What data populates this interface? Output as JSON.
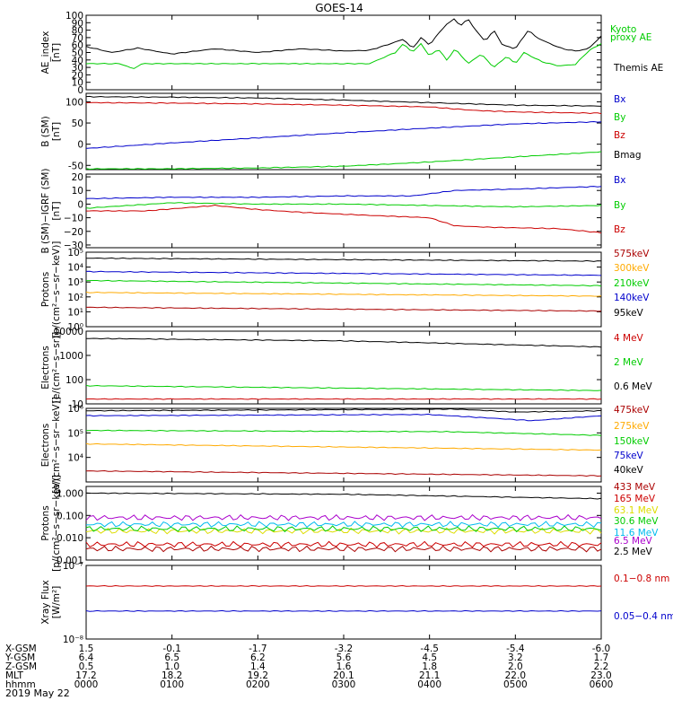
{
  "title": "GOES-14",
  "time_ticks": [
    "0000",
    "0100",
    "0200",
    "0300",
    "0400",
    "0500",
    "0600"
  ],
  "date_label": "2019 May 22",
  "orbit_rows": [
    {
      "label": "X-GSM",
      "values": [
        "1.5",
        "-0.1",
        "-1.7",
        "-3.2",
        "-4.5",
        "-5.4",
        "-6.0"
      ]
    },
    {
      "label": "Y-GSM",
      "values": [
        "6.4",
        "6.5",
        "6.2",
        "5.6",
        "4.5",
        "3.2",
        "1.7"
      ]
    },
    {
      "label": "Z-GSM",
      "values": [
        "0.5",
        "1.0",
        "1.4",
        "1.6",
        "1.8",
        "2.0",
        "2.2"
      ]
    },
    {
      "label": "MLT",
      "values": [
        "17.2",
        "18.2",
        "19.2",
        "20.1",
        "21.1",
        "22.0",
        "23.0"
      ]
    },
    {
      "label": "hhmm",
      "values": [
        "0000",
        "0100",
        "0200",
        "0300",
        "0400",
        "0500",
        "0600"
      ]
    }
  ],
  "colors": {
    "black": "#000000",
    "red": "#cc0000",
    "green": "#00cc00",
    "blue": "#0000cc",
    "orange": "#ffaa00",
    "yellow": "#dddd00",
    "cyan": "#00bbee",
    "purple": "#aa00cc",
    "darkred": "#aa0000"
  },
  "chart_data": [
    {
      "id": "ae",
      "type": "line",
      "ylabel": [
        "AE_index",
        "[nT]"
      ],
      "scale": "linear",
      "ylim": [
        0,
        100
      ],
      "yticks": [
        "0",
        "10",
        "20",
        "30",
        "40",
        "50",
        "60",
        "70",
        "80",
        "90",
        "100"
      ],
      "series": [
        {
          "name": "Kyoto proxy AE",
          "color": "#00cc00",
          "points": [
            [
              0,
              35
            ],
            [
              0.4,
              35
            ],
            [
              0.55,
              28
            ],
            [
              0.65,
              35
            ],
            [
              3.3,
              35
            ],
            [
              3.6,
              50
            ],
            [
              3.7,
              62
            ],
            [
              3.8,
              50
            ],
            [
              3.9,
              62
            ],
            [
              4.0,
              45
            ],
            [
              4.1,
              55
            ],
            [
              4.2,
              40
            ],
            [
              4.3,
              55
            ],
            [
              4.45,
              35
            ],
            [
              4.6,
              48
            ],
            [
              4.75,
              30
            ],
            [
              4.9,
              45
            ],
            [
              5.0,
              35
            ],
            [
              5.1,
              50
            ],
            [
              5.3,
              38
            ],
            [
              5.5,
              32
            ],
            [
              5.7,
              34
            ],
            [
              5.85,
              52
            ],
            [
              6.0,
              62
            ]
          ]
        },
        {
          "name": "Themis AE",
          "color": "#000000",
          "points": [
            [
              0,
              58
            ],
            [
              0.3,
              50
            ],
            [
              0.6,
              56
            ],
            [
              1.0,
              48
            ],
            [
              1.5,
              55
            ],
            [
              2.0,
              50
            ],
            [
              2.5,
              55
            ],
            [
              3.0,
              52
            ],
            [
              3.3,
              53
            ],
            [
              3.5,
              60
            ],
            [
              3.7,
              68
            ],
            [
              3.8,
              55
            ],
            [
              3.9,
              70
            ],
            [
              4.0,
              60
            ],
            [
              4.1,
              75
            ],
            [
              4.2,
              88
            ],
            [
              4.3,
              96
            ],
            [
              4.35,
              85
            ],
            [
              4.45,
              95
            ],
            [
              4.55,
              78
            ],
            [
              4.65,
              65
            ],
            [
              4.75,
              80
            ],
            [
              4.85,
              60
            ],
            [
              5.0,
              55
            ],
            [
              5.15,
              80
            ],
            [
              5.25,
              70
            ],
            [
              5.4,
              62
            ],
            [
              5.55,
              55
            ],
            [
              5.7,
              52
            ],
            [
              5.85,
              55
            ],
            [
              6.0,
              72
            ]
          ]
        }
      ]
    },
    {
      "id": "bsm",
      "type": "line",
      "ylabel": [
        "B (SM)",
        "[nT]"
      ],
      "scale": "linear",
      "ylim": [
        -60,
        120
      ],
      "yticks": [
        "-50",
        "0",
        "50",
        "100"
      ],
      "ytick_values": [
        -50,
        0,
        50,
        100
      ],
      "series": [
        {
          "name": "Bx",
          "color": "#0000cc",
          "points": [
            [
              0,
              -10
            ],
            [
              1,
              3
            ],
            [
              2,
              15
            ],
            [
              3,
              27
            ],
            [
              4,
              38
            ],
            [
              5,
              48
            ],
            [
              6,
              53
            ]
          ]
        },
        {
          "name": "By",
          "color": "#00cc00",
          "points": [
            [
              0,
              -58
            ],
            [
              1,
              -58
            ],
            [
              2,
              -56
            ],
            [
              3,
              -52
            ],
            [
              4,
              -42
            ],
            [
              5,
              -30
            ],
            [
              6,
              -18
            ]
          ]
        },
        {
          "name": "Bz",
          "color": "#cc0000",
          "points": [
            [
              0,
              98
            ],
            [
              1,
              97
            ],
            [
              2,
              95
            ],
            [
              3,
              92
            ],
            [
              4,
              88
            ],
            [
              4.5,
              80
            ],
            [
              5,
              76
            ],
            [
              6,
              73
            ]
          ]
        },
        {
          "name": "Bmag",
          "color": "#000000",
          "points": [
            [
              0,
              112
            ],
            [
              1,
              111
            ],
            [
              2,
              109
            ],
            [
              3,
              104
            ],
            [
              4,
              98
            ],
            [
              5,
              92
            ],
            [
              6,
              90
            ]
          ]
        }
      ]
    },
    {
      "id": "bdiff",
      "type": "line",
      "ylabel": [
        "B (SM)−IGRF (SM)",
        "[nT]"
      ],
      "scale": "linear",
      "ylim": [
        -32,
        22
      ],
      "yticks": [
        "20",
        "10",
        "0",
        "−10",
        "−20",
        "−30"
      ],
      "ytick_values": [
        20,
        10,
        0,
        -10,
        -20,
        -30
      ],
      "series": [
        {
          "name": "Bx",
          "color": "#0000cc",
          "points": [
            [
              0,
              4
            ],
            [
              1,
              5
            ],
            [
              2,
              5
            ],
            [
              3,
              6
            ],
            [
              3.8,
              6
            ],
            [
              4.3,
              10
            ],
            [
              5,
              11
            ],
            [
              6,
              13
            ]
          ]
        },
        {
          "name": "By",
          "color": "#00cc00",
          "points": [
            [
              0,
              -3
            ],
            [
              0.5,
              -1
            ],
            [
              1,
              1
            ],
            [
              2,
              0
            ],
            [
              3,
              0
            ],
            [
              4,
              -1
            ],
            [
              5,
              -2
            ],
            [
              6,
              -1
            ]
          ]
        },
        {
          "name": "Bz",
          "color": "#cc0000",
          "points": [
            [
              0,
              -5
            ],
            [
              0.7,
              -5
            ],
            [
              1.5,
              -1
            ],
            [
              2,
              -4
            ],
            [
              2.5,
              -6
            ],
            [
              3.2,
              -8
            ],
            [
              4,
              -10
            ],
            [
              4.3,
              -16
            ],
            [
              4.7,
              -17
            ],
            [
              5.5,
              -18
            ],
            [
              6,
              -21
            ]
          ]
        }
      ]
    },
    {
      "id": "protons1",
      "type": "line",
      "ylabel": [
        "Protons",
        "[p/(cm²−s−sr−keV)]"
      ],
      "scale": "log",
      "ylim": [
        0,
        5
      ],
      "yticks": [
        "10⁰",
        "10¹",
        "10²",
        "10³",
        "10⁴",
        "10⁵"
      ],
      "ytick_values": [
        0,
        1,
        2,
        3,
        4,
        5
      ],
      "series": [
        {
          "name": "575keV",
          "color": "#aa0000",
          "points": [
            [
              0,
              1.3
            ],
            [
              6,
              1.05
            ]
          ]
        },
        {
          "name": "300keV",
          "color": "#ffaa00",
          "points": [
            [
              0,
              2.3
            ],
            [
              6,
              2.05
            ]
          ]
        },
        {
          "name": "210keV",
          "color": "#00cc00",
          "points": [
            [
              0,
              3.1
            ],
            [
              6,
              2.75
            ]
          ]
        },
        {
          "name": "140keV",
          "color": "#0000cc",
          "points": [
            [
              0,
              3.7
            ],
            [
              6,
              3.45
            ]
          ]
        },
        {
          "name": "95keV",
          "color": "#000000",
          "points": [
            [
              0,
              4.6
            ],
            [
              6,
              4.4
            ]
          ]
        }
      ]
    },
    {
      "id": "electrons1",
      "type": "line",
      "ylabel": [
        "Electrons",
        "[e/(cm²−s−sr)]"
      ],
      "scale": "log",
      "ylim": [
        1,
        4
      ],
      "yticks": [
        "10",
        "100",
        "1000",
        "10000"
      ],
      "ytick_values": [
        1,
        2,
        3,
        4
      ],
      "series": [
        {
          "name": "4 MeV",
          "color": "#cc0000",
          "points": [
            [
              0,
              1.2
            ],
            [
              6,
              1.2
            ]
          ]
        },
        {
          "name": "2 MeV",
          "color": "#00cc00",
          "points": [
            [
              0,
              1.75
            ],
            [
              6,
              1.55
            ]
          ]
        },
        {
          "name": "0.6 MeV",
          "color": "#000000",
          "points": [
            [
              0,
              3.7
            ],
            [
              3,
              3.6
            ],
            [
              6,
              3.35
            ]
          ]
        }
      ]
    },
    {
      "id": "electrons2",
      "type": "line",
      "ylabel": [
        "Electrons",
        "[e/(cm²−s−sr−keV)]"
      ],
      "scale": "log",
      "ylim": [
        3,
        6
      ],
      "yticks": [
        "10⁴",
        "10⁵",
        "10⁶"
      ],
      "ytick_values": [
        4,
        5,
        6
      ],
      "series": [
        {
          "name": "475keV",
          "color": "#aa0000",
          "points": [
            [
              0,
              3.45
            ],
            [
              6,
              3.25
            ]
          ]
        },
        {
          "name": "275keV",
          "color": "#ffaa00",
          "points": [
            [
              0,
              4.55
            ],
            [
              6,
              4.3
            ]
          ]
        },
        {
          "name": "150keV",
          "color": "#00cc00",
          "points": [
            [
              0,
              5.1
            ],
            [
              4.2,
              5.05
            ],
            [
              6,
              4.9
            ]
          ]
        },
        {
          "name": "75keV",
          "color": "#0000cc",
          "points": [
            [
              0,
              5.7
            ],
            [
              4,
              5.75
            ],
            [
              5.2,
              5.5
            ],
            [
              6,
              5.7
            ]
          ]
        },
        {
          "name": "40keV",
          "color": "#000000",
          "points": [
            [
              0,
              5.9
            ],
            [
              4.3,
              5.97
            ],
            [
              5,
              5.85
            ],
            [
              6,
              5.9
            ]
          ]
        }
      ]
    },
    {
      "id": "protons2",
      "type": "line",
      "ylabel": [
        "Protons",
        "[p/(cm²−s−sr−keV)]"
      ],
      "scale": "log",
      "ylim": [
        -3,
        0.3
      ],
      "yticks": [
        "0.001",
        "0.010",
        "0.100",
        "1.000"
      ],
      "ytick_values": [
        -3,
        -2,
        -1,
        0
      ],
      "series": [
        {
          "name": "433 MeV",
          "color": "#aa0000",
          "points": [
            [
              0,
              -2.5
            ],
            [
              6,
              -2.5
            ]
          ]
        },
        {
          "name": "165 MeV",
          "color": "#cc0000",
          "points": [
            [
              0,
              -2.3
            ],
            [
              6,
              -2.3
            ]
          ]
        },
        {
          "name": "63.1 MeV",
          "color": "#dddd00",
          "points": [
            [
              0,
              -1.7
            ],
            [
              6,
              -1.7
            ]
          ]
        },
        {
          "name": "30.6 MeV",
          "color": "#00cc00",
          "points": [
            [
              0,
              -1.6
            ],
            [
              6,
              -1.6
            ]
          ]
        },
        {
          "name": "11.6 MeV",
          "color": "#00bbee",
          "points": [
            [
              0,
              -1.4
            ],
            [
              6,
              -1.4
            ]
          ]
        },
        {
          "name": "6.5 MeV",
          "color": "#aa00cc",
          "points": [
            [
              0,
              -1.1
            ],
            [
              6,
              -1.1
            ]
          ]
        },
        {
          "name": "2.5 MeV",
          "color": "#000000",
          "points": [
            [
              0,
              0
            ],
            [
              3,
              -0.05
            ],
            [
              6,
              -0.25
            ]
          ]
        }
      ]
    },
    {
      "id": "xray",
      "type": "line",
      "ylabel": [
        "Xray Flux",
        "[W/m²]"
      ],
      "scale": "log",
      "ylim": [
        -8,
        -7
      ],
      "yticks": [
        "10⁻⁸",
        "10⁻⁷"
      ],
      "ytick_values": [
        -8,
        -7
      ],
      "series": [
        {
          "name": "0.1−0.8 nm",
          "color": "#cc0000",
          "points": [
            [
              0,
              -7.28
            ],
            [
              6,
              -7.28
            ]
          ]
        },
        {
          "name": "0.05−0.4 nm",
          "color": "#0000cc",
          "points": [
            [
              0,
              -7.62
            ],
            [
              6,
              -7.62
            ]
          ]
        }
      ]
    }
  ]
}
